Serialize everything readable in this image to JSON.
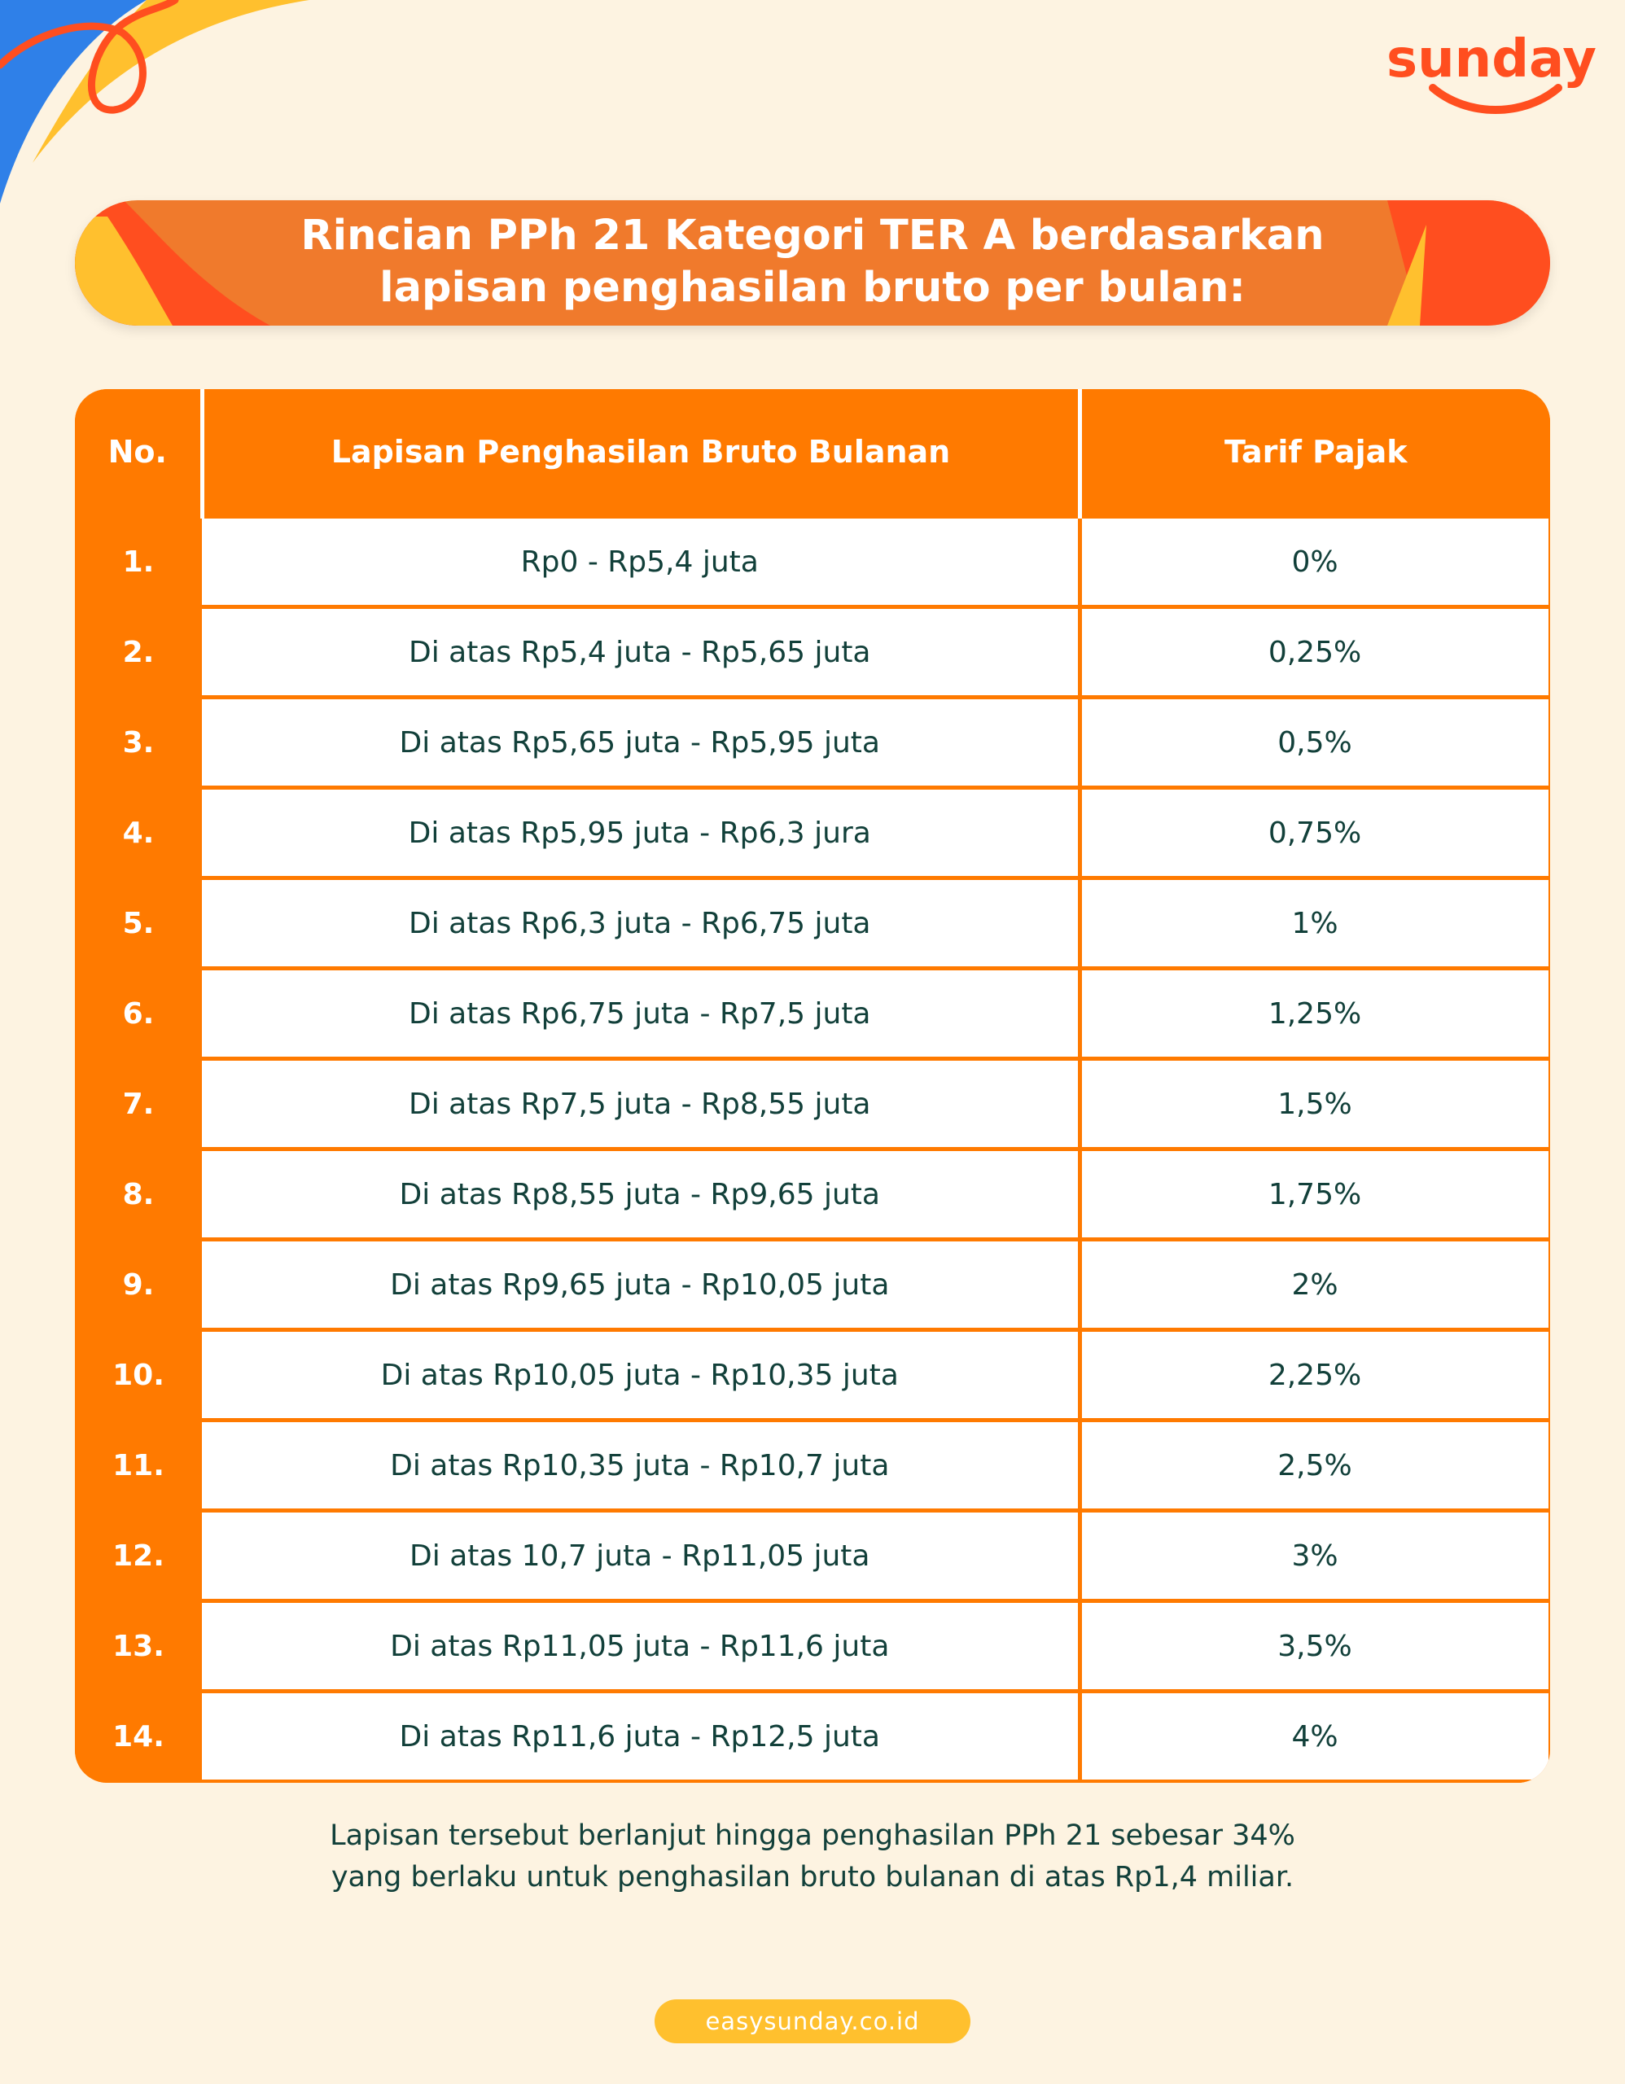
{
  "brand": {
    "logo_text": "sunday"
  },
  "title": {
    "line1": "Rincian PPh 21 Kategori TER A berdasarkan",
    "line2": "lapisan penghasilan bruto per bulan:"
  },
  "table": {
    "headers": [
      "No.",
      "Lapisan Penghasilan Bruto Bulanan",
      "Tarif Pajak"
    ],
    "rows": [
      {
        "no": "1.",
        "range": "Rp0 - Rp5,4 juta",
        "rate": "0%"
      },
      {
        "no": "2.",
        "range": "Di atas Rp5,4 juta - Rp5,65 juta",
        "rate": "0,25%"
      },
      {
        "no": "3.",
        "range": "Di atas Rp5,65 juta - Rp5,95 juta",
        "rate": "0,5%"
      },
      {
        "no": "4.",
        "range": "Di atas Rp5,95 juta - Rp6,3 jura",
        "rate": "0,75%"
      },
      {
        "no": "5.",
        "range": "Di atas Rp6,3 juta - Rp6,75 juta",
        "rate": "1%"
      },
      {
        "no": "6.",
        "range": "Di atas Rp6,75 juta - Rp7,5 juta",
        "rate": "1,25%"
      },
      {
        "no": "7.",
        "range": "Di atas Rp7,5 juta - Rp8,55 juta",
        "rate": "1,5%"
      },
      {
        "no": "8.",
        "range": "Di atas Rp8,55 juta - Rp9,65 juta",
        "rate": "1,75%"
      },
      {
        "no": "9.",
        "range": "Di atas Rp9,65 juta - Rp10,05 juta",
        "rate": "2%"
      },
      {
        "no": "10.",
        "range": "Di atas Rp10,05 juta - Rp10,35 juta",
        "rate": "2,25%"
      },
      {
        "no": "11.",
        "range": "Di atas Rp10,35 juta - Rp10,7 juta",
        "rate": "2,5%"
      },
      {
        "no": "12.",
        "range": "Di atas 10,7 juta - Rp11,05 juta",
        "rate": "3%"
      },
      {
        "no": "13.",
        "range": "Di atas Rp11,05 juta - Rp11,6 juta",
        "rate": "3,5%"
      },
      {
        "no": "14.",
        "range": "Di atas Rp11,6 juta - Rp12,5 juta",
        "rate": "4%"
      }
    ]
  },
  "note": {
    "line1": "Lapisan tersebut berlanjut hingga penghasilan PPh 21 sebesar 34%",
    "line2": "yang berlaku untuk penghasilan bruto bulanan di atas Rp1,4 miliar."
  },
  "footer": {
    "url": "easysunday.co.id"
  },
  "colors": {
    "background": "#FDF3E1",
    "orange": "#FF7A00",
    "title_orange": "#F07A2C",
    "red_orange": "#FF4E1F",
    "yellow": "#FFC02E",
    "blue": "#2F80E8",
    "text_dark": "#12403A"
  }
}
